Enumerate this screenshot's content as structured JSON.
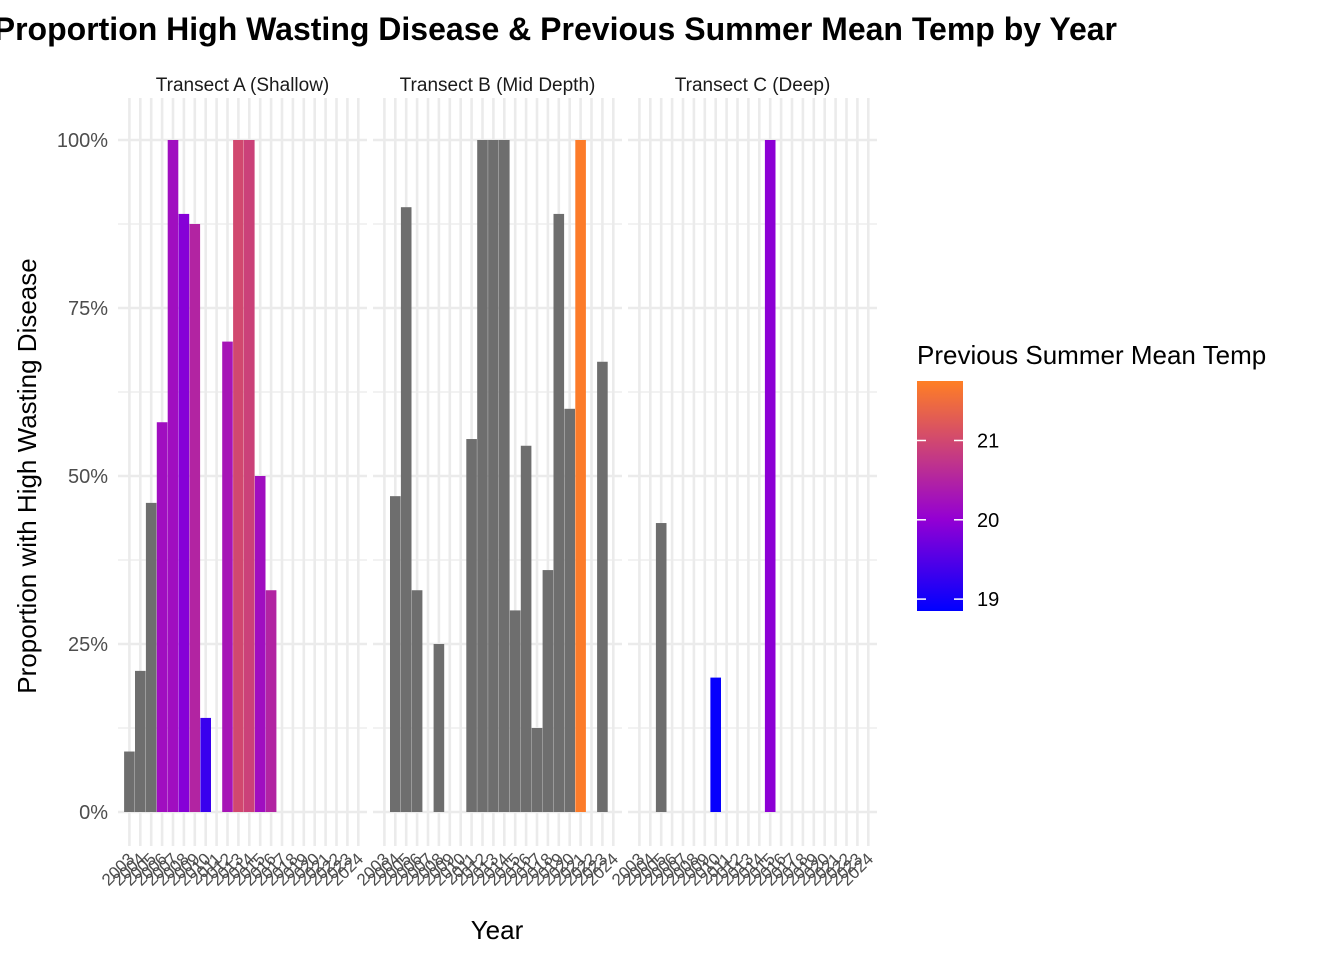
{
  "chart_data": {
    "type": "bar",
    "title": "Proportion High Wasting Disease & Previous Summer Mean Temp by Year",
    "xlabel": "Year",
    "ylabel": "Proportion with High Wasting Disease",
    "ylim": [
      0,
      1
    ],
    "yticks": [
      0,
      0.25,
      0.5,
      0.75,
      1
    ],
    "ytick_labels": [
      "0%",
      "25%",
      "50%",
      "75%",
      "100%"
    ],
    "years": [
      "2003",
      "2004",
      "2005",
      "2006",
      "2007",
      "2008",
      "2009",
      "2010",
      "2011",
      "2012",
      "2013",
      "2014",
      "2015",
      "2016",
      "2017",
      "2018",
      "2019",
      "2020",
      "2021",
      "2022",
      "2023",
      "2024"
    ],
    "grid": true,
    "legend": {
      "title": "Previous Summer Mean Temp",
      "placement": "right",
      "range": [
        18.85,
        21.75
      ],
      "ticks": [
        19,
        20,
        21
      ],
      "tick_labels": [
        "19",
        "20",
        "21"
      ],
      "colors": [
        "#0000ff",
        "#9400d3",
        "#ff7f24"
      ]
    },
    "na_color": "#6e6e6e",
    "panels": [
      {
        "name": "Transect A (Shallow)",
        "bars": [
          {
            "year": "2003",
            "value": 0.09,
            "temp": null
          },
          {
            "year": "2004",
            "value": 0.21,
            "temp": null
          },
          {
            "year": "2005",
            "value": 0.46,
            "temp": null
          },
          {
            "year": "2006",
            "value": 0.58,
            "temp": 20.2
          },
          {
            "year": "2007",
            "value": 1.0,
            "temp": 20.2
          },
          {
            "year": "2008",
            "value": 0.89,
            "temp": 19.9
          },
          {
            "year": "2009",
            "value": 0.875,
            "temp": 20.5
          },
          {
            "year": "2010",
            "value": 0.14,
            "temp": 19.3
          },
          {
            "year": "2012",
            "value": 0.7,
            "temp": 20.3
          },
          {
            "year": "2013",
            "value": 1.0,
            "temp": 21.0
          },
          {
            "year": "2014",
            "value": 1.0,
            "temp": 20.9
          },
          {
            "year": "2015",
            "value": 0.5,
            "temp": 20.2
          },
          {
            "year": "2016",
            "value": 0.33,
            "temp": 20.5
          }
        ]
      },
      {
        "name": "Transect B (Mid Depth)",
        "bars": [
          {
            "year": "2004",
            "value": 0.47,
            "temp": null
          },
          {
            "year": "2005",
            "value": 0.9,
            "temp": null
          },
          {
            "year": "2006",
            "value": 0.33,
            "temp": null
          },
          {
            "year": "2008",
            "value": 0.25,
            "temp": null
          },
          {
            "year": "2011",
            "value": 0.555,
            "temp": null
          },
          {
            "year": "2012",
            "value": 1.0,
            "temp": null
          },
          {
            "year": "2013",
            "value": 1.0,
            "temp": null
          },
          {
            "year": "2014",
            "value": 1.0,
            "temp": null
          },
          {
            "year": "2015",
            "value": 0.3,
            "temp": null
          },
          {
            "year": "2016",
            "value": 0.545,
            "temp": null
          },
          {
            "year": "2017",
            "value": 0.125,
            "temp": null
          },
          {
            "year": "2018",
            "value": 0.36,
            "temp": null
          },
          {
            "year": "2019",
            "value": 0.89,
            "temp": null
          },
          {
            "year": "2020",
            "value": 0.6,
            "temp": null
          },
          {
            "year": "2021",
            "value": 1.0,
            "temp": 21.7
          },
          {
            "year": "2023",
            "value": 0.67,
            "temp": null
          }
        ]
      },
      {
        "name": "Transect C (Deep)",
        "bars": [
          {
            "year": "2005",
            "value": 0.43,
            "temp": null
          },
          {
            "year": "2010",
            "value": 0.2,
            "temp": 18.9
          },
          {
            "year": "2015",
            "value": 1.0,
            "temp": 19.95
          }
        ]
      }
    ]
  }
}
